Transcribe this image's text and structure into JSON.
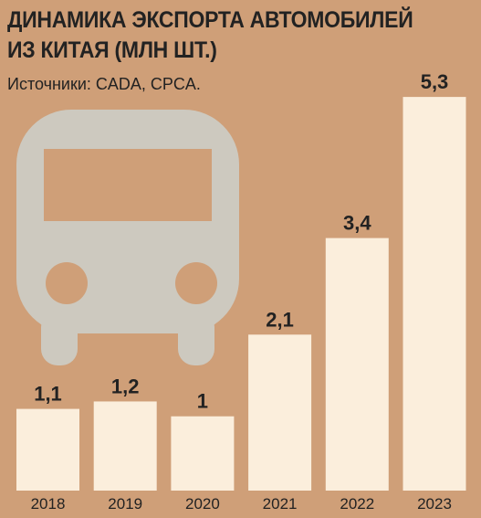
{
  "chart_data": {
    "type": "bar",
    "title": "ДИНАМИКА ЭКСПОРТА АВТОМОБИЛЕЙ ИЗ КИТАЯ (МЛН ШТ.)",
    "subtitle": "Источники: CADA, CPCA.",
    "categories": [
      "2018",
      "2019",
      "2020",
      "2021",
      "2022",
      "2023"
    ],
    "values": [
      1.1,
      1.2,
      1,
      2.1,
      3.4,
      5.3
    ],
    "value_labels": [
      "1,1",
      "1,2",
      "1",
      "2,1",
      "3,4",
      "5,3"
    ],
    "color": "#fbeedc"
  }
}
